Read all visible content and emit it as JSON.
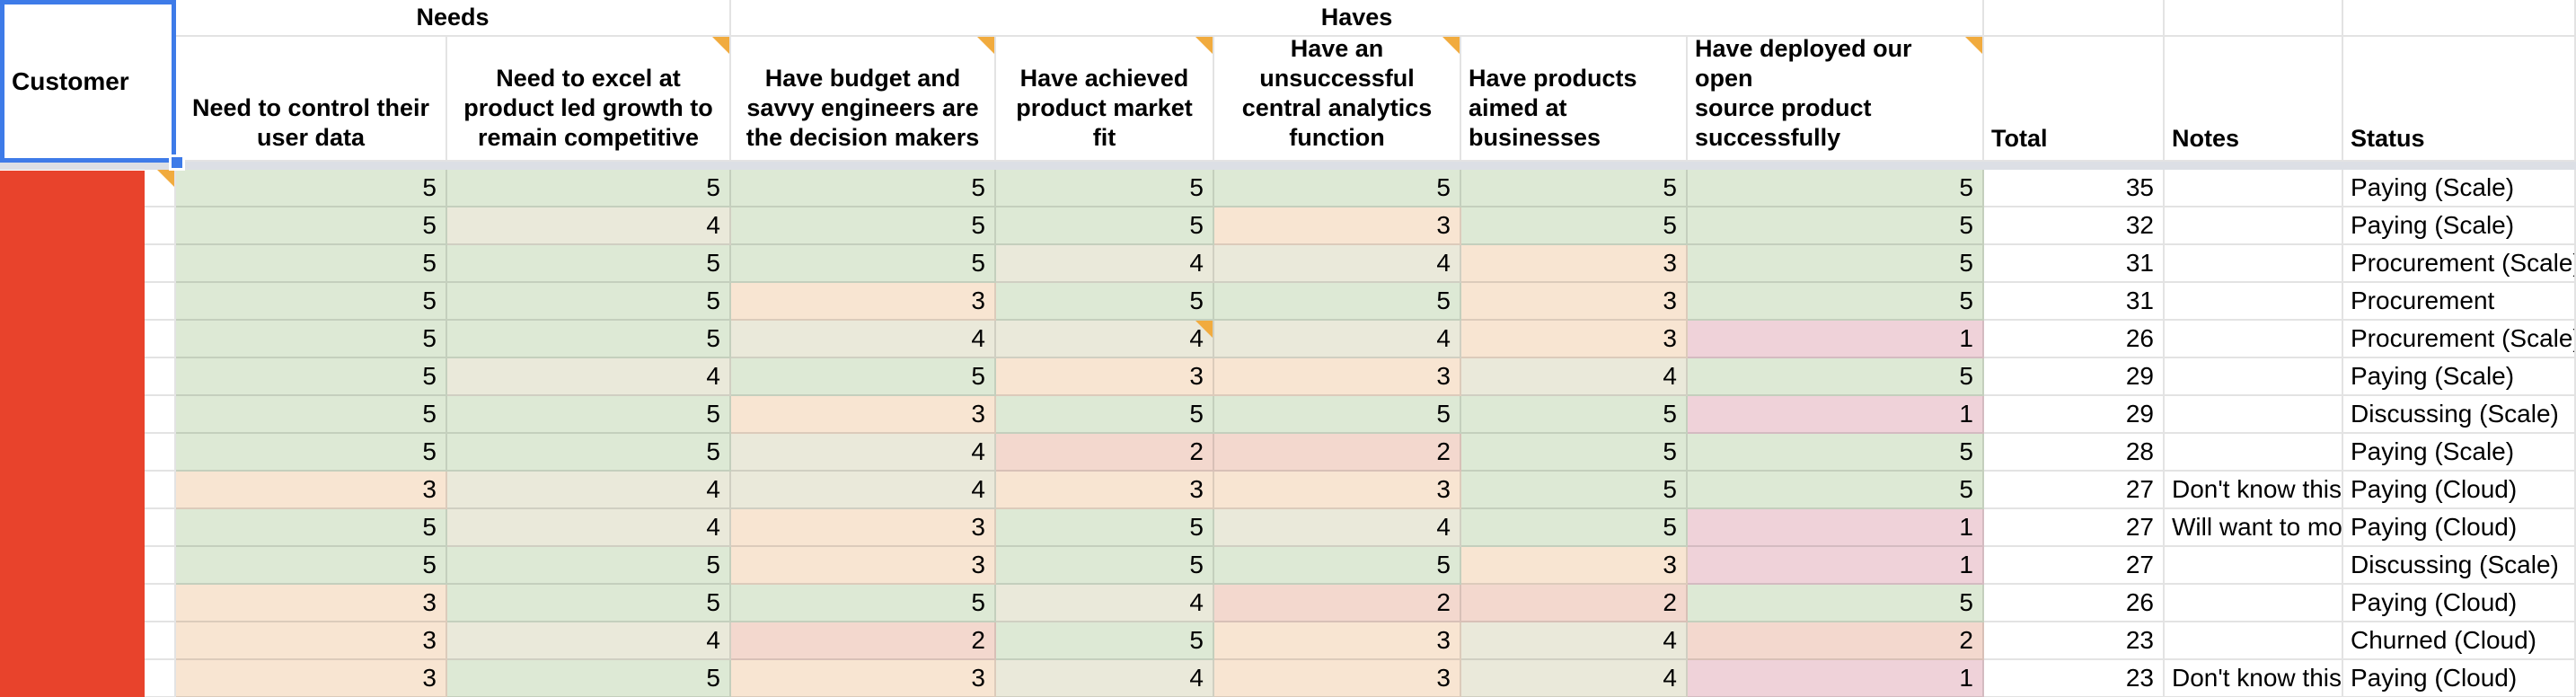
{
  "colors": {
    "selection_blue": "#3e7be8",
    "comment_orange": "#f1ab3e",
    "redaction_red": "#e8432c",
    "divider_gray": "#dcdfe5",
    "score_scale": {
      "1": "#efd2d9",
      "2": "#f3d8ce",
      "3": "#f8e5d2",
      "4": "#eae9da",
      "5": "#dde9d5"
    }
  },
  "sheet": {
    "corner_label": "Customer",
    "group_headers": [
      {
        "id": "needs",
        "label": "Needs"
      },
      {
        "id": "haves",
        "label": "Haves"
      }
    ],
    "score_columns": [
      {
        "label": "Need to control their\nuser data",
        "align": "center",
        "comment": false
      },
      {
        "label": "Need to excel at\nproduct led growth to\nremain competitive",
        "align": "center",
        "comment": true
      },
      {
        "label": "Have budget and\nsavvy engineers are\nthe decision makers",
        "align": "center",
        "comment": true
      },
      {
        "label": "Have achieved\nproduct market\nfit",
        "align": "center",
        "comment": true
      },
      {
        "label": "Have an\nunsuccessful\ncentral analytics\nfunction",
        "align": "center",
        "comment": true
      },
      {
        "label": "Have products\naimed at\nbusinesses",
        "align": "left",
        "comment": false
      },
      {
        "label": "Have deployed our open\nsource product\nsuccessfully",
        "align": "left",
        "comment": true
      }
    ],
    "meta_columns": [
      {
        "id": "total",
        "label": "Total"
      },
      {
        "id": "notes",
        "label": "Notes"
      },
      {
        "id": "status",
        "label": "Status"
      }
    ],
    "rows": [
      {
        "scores": [
          5,
          5,
          5,
          5,
          5,
          5,
          5
        ],
        "total": 35,
        "notes": "",
        "status": "Paying (Scale)",
        "customer_comment": true
      },
      {
        "scores": [
          5,
          4,
          5,
          5,
          3,
          5,
          5
        ],
        "total": 32,
        "notes": "",
        "status": "Paying (Scale)"
      },
      {
        "scores": [
          5,
          5,
          5,
          4,
          4,
          3,
          5
        ],
        "total": 31,
        "notes": "",
        "status": "Procurement (Scale)"
      },
      {
        "scores": [
          5,
          5,
          3,
          5,
          5,
          3,
          5
        ],
        "total": 31,
        "notes": "",
        "status": "Procurement"
      },
      {
        "scores": [
          5,
          5,
          4,
          4,
          4,
          3,
          1
        ],
        "total": 26,
        "notes": "",
        "status": "Procurement (Scale)",
        "score_comment_index": 3
      },
      {
        "scores": [
          5,
          4,
          5,
          3,
          3,
          4,
          5
        ],
        "total": 29,
        "notes": "",
        "status": "Paying (Scale)"
      },
      {
        "scores": [
          5,
          5,
          3,
          5,
          5,
          5,
          1
        ],
        "total": 29,
        "notes": "",
        "status": "Discussing (Scale)"
      },
      {
        "scores": [
          5,
          5,
          4,
          2,
          2,
          5,
          5
        ],
        "total": 28,
        "notes": "",
        "status": "Paying (Scale)"
      },
      {
        "scores": [
          3,
          4,
          4,
          3,
          3,
          5,
          5
        ],
        "total": 27,
        "notes": "Don't know this c",
        "status": "Paying (Cloud)"
      },
      {
        "scores": [
          5,
          4,
          3,
          5,
          4,
          5,
          1
        ],
        "total": 27,
        "notes": "Will want to mov",
        "status": "Paying (Cloud)"
      },
      {
        "scores": [
          5,
          5,
          3,
          5,
          5,
          3,
          1
        ],
        "total": 27,
        "notes": "",
        "status": "Discussing (Scale)"
      },
      {
        "scores": [
          3,
          5,
          5,
          4,
          2,
          2,
          5
        ],
        "total": 26,
        "notes": "",
        "status": "Paying (Cloud)"
      },
      {
        "scores": [
          3,
          4,
          2,
          5,
          3,
          4,
          2
        ],
        "total": 23,
        "notes": "",
        "status": "Churned (Cloud)"
      },
      {
        "scores": [
          3,
          5,
          3,
          4,
          3,
          4,
          1
        ],
        "total": 23,
        "notes": "Don't know this c",
        "status": "Paying (Cloud)"
      }
    ]
  }
}
